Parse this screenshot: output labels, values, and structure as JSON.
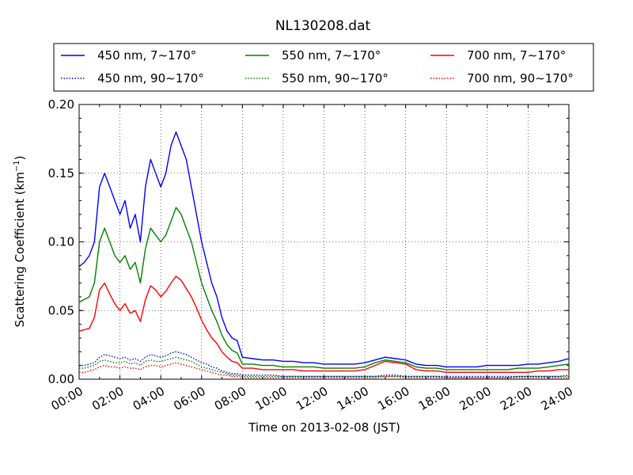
{
  "chart_data": {
    "type": "line",
    "title": "NL130208.dat",
    "xlabel": "Time on 2013-02-08 (JST)",
    "ylabel": "Scattering Coefficient (km",
    "ylabel_sup": "−1",
    "ylabel_end": ")",
    "xlim_hours": [
      0,
      24
    ],
    "ylim": [
      0,
      0.2
    ],
    "grid": true,
    "grid_style": "dotted",
    "legend_position": "top-center, above plot",
    "x_tick_labels": [
      "00:00",
      "02:00",
      "04:00",
      "06:00",
      "08:00",
      "10:00",
      "12:00",
      "14:00",
      "16:00",
      "18:00",
      "20:00",
      "22:00",
      "24:00"
    ],
    "y_tick_labels": [
      "0.00",
      "0.05",
      "0.10",
      "0.15",
      "0.20"
    ],
    "y_ticks": [
      0,
      0.05,
      0.1,
      0.15,
      0.2
    ],
    "x": [
      0,
      0.25,
      0.5,
      0.75,
      1,
      1.25,
      1.5,
      1.75,
      2,
      2.25,
      2.5,
      2.75,
      3,
      3.25,
      3.5,
      3.75,
      4,
      4.25,
      4.5,
      4.75,
      5,
      5.25,
      5.5,
      5.75,
      6,
      6.25,
      6.5,
      6.75,
      7,
      7.25,
      7.5,
      7.75,
      8,
      8.5,
      9,
      9.5,
      10,
      10.5,
      11,
      11.5,
      12,
      12.5,
      13,
      13.5,
      14,
      14.5,
      15,
      15.5,
      16,
      16.5,
      17,
      17.5,
      18,
      18.5,
      19,
      19.5,
      20,
      20.5,
      21,
      21.5,
      22,
      22.5,
      23,
      23.5,
      24
    ],
    "series": [
      {
        "name": "450 nm, 7∼170°",
        "color": "#0000ff",
        "style": "solid",
        "values": [
          0.082,
          0.085,
          0.09,
          0.1,
          0.14,
          0.15,
          0.14,
          0.13,
          0.12,
          0.13,
          0.11,
          0.12,
          0.1,
          0.14,
          0.16,
          0.15,
          0.14,
          0.15,
          0.17,
          0.18,
          0.17,
          0.16,
          0.14,
          0.12,
          0.1,
          0.085,
          0.07,
          0.06,
          0.045,
          0.035,
          0.03,
          0.028,
          0.016,
          0.015,
          0.014,
          0.014,
          0.013,
          0.013,
          0.012,
          0.012,
          0.011,
          0.011,
          0.011,
          0.011,
          0.012,
          0.014,
          0.016,
          0.015,
          0.014,
          0.011,
          0.01,
          0.01,
          0.009,
          0.009,
          0.009,
          0.009,
          0.01,
          0.01,
          0.01,
          0.01,
          0.011,
          0.011,
          0.012,
          0.013,
          0.015
        ]
      },
      {
        "name": "450 nm, 90∼170°",
        "color": "#0000ff",
        "style": "dotted",
        "values": [
          0.01,
          0.01,
          0.011,
          0.012,
          0.016,
          0.018,
          0.017,
          0.016,
          0.015,
          0.016,
          0.014,
          0.015,
          0.013,
          0.016,
          0.018,
          0.017,
          0.016,
          0.017,
          0.019,
          0.02,
          0.019,
          0.018,
          0.016,
          0.014,
          0.012,
          0.011,
          0.009,
          0.008,
          0.006,
          0.005,
          0.004,
          0.004,
          0.003,
          0.003,
          0.003,
          0.003,
          0.002,
          0.002,
          0.002,
          0.002,
          0.002,
          0.002,
          0.002,
          0.002,
          0.002,
          0.002,
          0.003,
          0.003,
          0.002,
          0.002,
          0.002,
          0.002,
          0.002,
          0.002,
          0.002,
          0.002,
          0.002,
          0.002,
          0.002,
          0.002,
          0.002,
          0.002,
          0.002,
          0.002,
          0.003
        ]
      },
      {
        "name": "550 nm, 7∼170°",
        "color": "#008000",
        "style": "solid",
        "values": [
          0.056,
          0.058,
          0.06,
          0.07,
          0.1,
          0.11,
          0.1,
          0.09,
          0.085,
          0.09,
          0.08,
          0.085,
          0.07,
          0.095,
          0.11,
          0.105,
          0.1,
          0.105,
          0.115,
          0.125,
          0.12,
          0.11,
          0.1,
          0.085,
          0.07,
          0.06,
          0.05,
          0.042,
          0.032,
          0.025,
          0.021,
          0.019,
          0.011,
          0.011,
          0.01,
          0.01,
          0.009,
          0.009,
          0.009,
          0.009,
          0.008,
          0.008,
          0.008,
          0.008,
          0.009,
          0.012,
          0.014,
          0.013,
          0.012,
          0.009,
          0.008,
          0.008,
          0.007,
          0.007,
          0.007,
          0.007,
          0.007,
          0.007,
          0.007,
          0.008,
          0.008,
          0.008,
          0.009,
          0.01,
          0.011
        ]
      },
      {
        "name": "550 nm, 90∼170°",
        "color": "#008000",
        "style": "dotted",
        "values": [
          0.008,
          0.008,
          0.009,
          0.01,
          0.013,
          0.014,
          0.013,
          0.012,
          0.012,
          0.013,
          0.011,
          0.012,
          0.01,
          0.013,
          0.014,
          0.013,
          0.013,
          0.014,
          0.015,
          0.016,
          0.015,
          0.014,
          0.013,
          0.011,
          0.009,
          0.008,
          0.007,
          0.006,
          0.005,
          0.004,
          0.003,
          0.003,
          0.002,
          0.002,
          0.002,
          0.002,
          0.002,
          0.002,
          0.002,
          0.002,
          0.002,
          0.002,
          0.002,
          0.002,
          0.002,
          0.002,
          0.002,
          0.002,
          0.002,
          0.002,
          0.002,
          0.002,
          0.001,
          0.001,
          0.001,
          0.001,
          0.001,
          0.001,
          0.001,
          0.002,
          0.002,
          0.002,
          0.002,
          0.002,
          0.002
        ]
      },
      {
        "name": "700 nm, 7∼170°",
        "color": "#ff0000",
        "style": "solid",
        "values": [
          0.035,
          0.036,
          0.037,
          0.045,
          0.065,
          0.07,
          0.062,
          0.055,
          0.05,
          0.055,
          0.048,
          0.05,
          0.042,
          0.058,
          0.068,
          0.065,
          0.06,
          0.064,
          0.07,
          0.075,
          0.072,
          0.066,
          0.06,
          0.052,
          0.043,
          0.036,
          0.03,
          0.026,
          0.02,
          0.016,
          0.013,
          0.012,
          0.008,
          0.008,
          0.007,
          0.007,
          0.007,
          0.007,
          0.006,
          0.006,
          0.006,
          0.006,
          0.006,
          0.006,
          0.007,
          0.01,
          0.013,
          0.012,
          0.011,
          0.007,
          0.006,
          0.006,
          0.005,
          0.005,
          0.005,
          0.005,
          0.005,
          0.005,
          0.005,
          0.005,
          0.005,
          0.006,
          0.006,
          0.007,
          0.007
        ]
      },
      {
        "name": "700 nm, 90∼170°",
        "color": "#ff0000",
        "style": "dotted",
        "values": [
          0.005,
          0.005,
          0.006,
          0.007,
          0.009,
          0.01,
          0.009,
          0.009,
          0.008,
          0.009,
          0.008,
          0.008,
          0.007,
          0.009,
          0.01,
          0.01,
          0.009,
          0.01,
          0.011,
          0.012,
          0.011,
          0.01,
          0.009,
          0.008,
          0.007,
          0.006,
          0.005,
          0.004,
          0.003,
          0.003,
          0.002,
          0.002,
          0.001,
          0.001,
          0.001,
          0.001,
          0.001,
          0.001,
          0.001,
          0.001,
          0.001,
          0.001,
          0.001,
          0.001,
          0.001,
          0.001,
          0.002,
          0.002,
          0.001,
          0.001,
          0.001,
          0.001,
          0.001,
          0.001,
          0.001,
          0.001,
          0.001,
          0.001,
          0.001,
          0.001,
          0.001,
          0.001,
          0.001,
          0.001,
          0.001
        ]
      }
    ]
  }
}
